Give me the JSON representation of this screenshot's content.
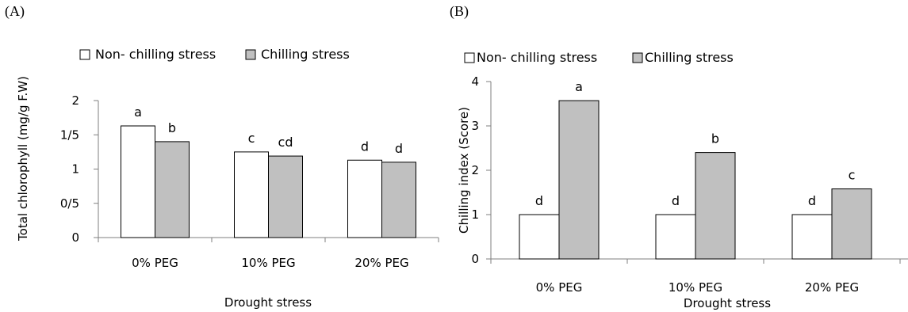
{
  "chart_data": [
    {
      "panel_label": "(A)",
      "type": "bar",
      "categories": [
        "0% PEG",
        "10% PEG",
        "20% PEG"
      ],
      "series": [
        {
          "name": "Non- chilling stress",
          "color": "#ffffff",
          "values": [
            1.63,
            1.25,
            1.13
          ],
          "labels": [
            "a",
            "c",
            "d"
          ]
        },
        {
          "name": "Chilling stress",
          "color": "#c0c0c0",
          "values": [
            1.4,
            1.19,
            1.1
          ],
          "labels": [
            "b",
            "cd",
            "d"
          ]
        }
      ],
      "ylim": [
        0,
        2
      ],
      "yticks": [
        0,
        0.5,
        1,
        1.5,
        2
      ],
      "ytick_labels": [
        "0",
        "0/5",
        "1",
        "1/5",
        "2"
      ],
      "xlabel": "Drought stress",
      "ylabel": "Total chlorophyll (mg/g F.W)",
      "legend_position": "top"
    },
    {
      "panel_label": "(B)",
      "type": "bar",
      "categories": [
        "0% PEG",
        "10% PEG",
        "20% PEG"
      ],
      "series": [
        {
          "name": "Non- chilling stress",
          "color": "#ffffff",
          "values": [
            1,
            1,
            1
          ],
          "labels": [
            "d",
            "d",
            "d"
          ]
        },
        {
          "name": "Chilling stress",
          "color": "#c0c0c0",
          "values": [
            3.57,
            2.4,
            1.58
          ],
          "labels": [
            "a",
            "b",
            "c"
          ]
        }
      ],
      "ylim": [
        0,
        4
      ],
      "yticks": [
        0,
        1,
        2,
        3,
        4
      ],
      "ytick_labels": [
        "0",
        "1",
        "2",
        "3",
        "4"
      ],
      "xlabel": "Drought stress",
      "ylabel": "Chilling index (Score)",
      "legend_position": "top"
    }
  ]
}
